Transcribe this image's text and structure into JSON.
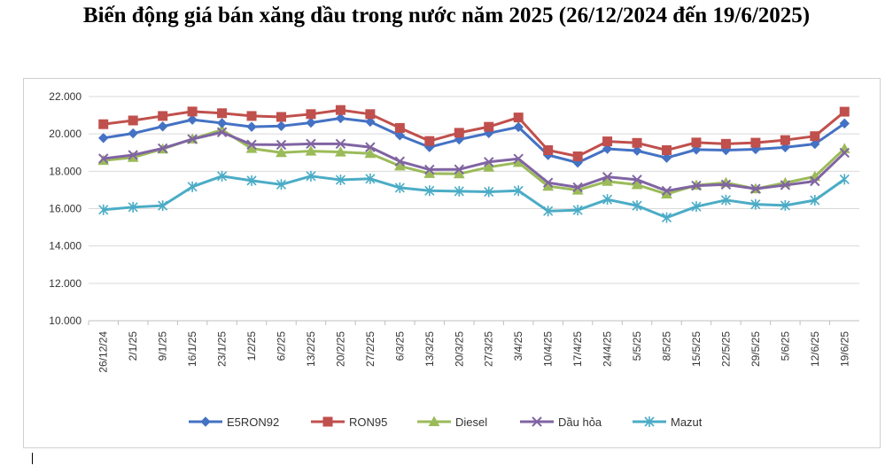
{
  "title": "Biến động giá bán xăng dầu trong nước năm 2025 (26/12/2024 đến 19/6/2025)",
  "chart_data": {
    "type": "line",
    "title": "Biến động giá bán xăng dầu trong nước năm 2025 (26/12/2024 đến 19/6/2025)",
    "xlabel": "",
    "ylabel": "",
    "ylim": [
      10000,
      22000
    ],
    "yticks": [
      "10.000",
      "12.000",
      "14.000",
      "16.000",
      "18.000",
      "20.000",
      "22.000"
    ],
    "ytick_values": [
      10000,
      12000,
      14000,
      16000,
      18000,
      20000,
      22000
    ],
    "grid": true,
    "legend_position": "bottom",
    "categories": [
      "26/12/24",
      "2/1/25",
      "9/1/25",
      "16/1/25",
      "23/1/25",
      "1/2/25",
      "6/2/25",
      "13/2/25",
      "20/2/25",
      "27/2/25",
      "6/3/25",
      "13/3/25",
      "20/3/25",
      "27/3/25",
      "3/4/25",
      "10/4/25",
      "17/4/25",
      "24/4/25",
      "5/5/25",
      "8/5/25",
      "15/5/25",
      "22/5/25",
      "29/5/25",
      "5/6/25",
      "12/6/25",
      "19/6/25"
    ],
    "series": [
      {
        "name": "E5RON92",
        "color": "#4472C4",
        "marker": "diamond",
        "values": [
          19780,
          20030,
          20400,
          20760,
          20580,
          20380,
          20420,
          20600,
          20840,
          20650,
          19920,
          19290,
          19700,
          20040,
          20370,
          18870,
          18460,
          19200,
          19100,
          18720,
          19160,
          19130,
          19180,
          19280,
          19460,
          20560
        ]
      },
      {
        "name": "RON95",
        "color": "#C0504D",
        "marker": "square",
        "values": [
          20520,
          20720,
          20960,
          21200,
          21110,
          20960,
          20910,
          21060,
          21280,
          21060,
          20320,
          19620,
          20060,
          20380,
          20880,
          19130,
          18800,
          19600,
          19520,
          19130,
          19540,
          19470,
          19530,
          19670,
          19880,
          21190
        ]
      },
      {
        "name": "Diesel",
        "color": "#9BBB59",
        "marker": "triangle",
        "values": [
          18580,
          18740,
          19190,
          19730,
          20220,
          19220,
          19000,
          19080,
          19030,
          18950,
          18280,
          17880,
          17860,
          18220,
          18470,
          17200,
          16990,
          17460,
          17280,
          16780,
          17250,
          17390,
          17060,
          17380,
          17720,
          19210
        ]
      },
      {
        "name": "Dầu hỏa",
        "color": "#8064A2",
        "marker": "x",
        "values": [
          18680,
          18870,
          19230,
          19720,
          20090,
          19430,
          19420,
          19470,
          19470,
          19290,
          18530,
          18090,
          18100,
          18500,
          18670,
          17390,
          17140,
          17700,
          17550,
          16950,
          17230,
          17290,
          17060,
          17260,
          17470,
          18990
        ]
      },
      {
        "name": "Mazut",
        "color": "#4BACC6",
        "marker": "star",
        "values": [
          15940,
          16080,
          16160,
          17170,
          17740,
          17500,
          17290,
          17740,
          17540,
          17600,
          17120,
          16960,
          16930,
          16900,
          16960,
          15870,
          15920,
          16490,
          16160,
          15520,
          16110,
          16460,
          16230,
          16170,
          16450,
          17570
        ]
      }
    ]
  }
}
